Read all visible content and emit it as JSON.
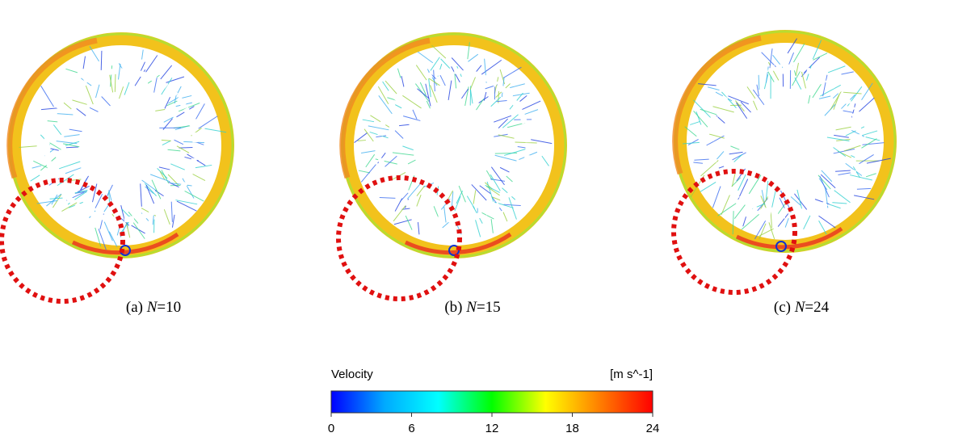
{
  "panels": [
    {
      "label": "(a)",
      "variable": "N",
      "eq": "=10"
    },
    {
      "label": "(b)",
      "variable": "N",
      "eq": "=15"
    },
    {
      "label": "(c)",
      "variable": "N",
      "eq": "=24"
    }
  ],
  "colorbar": {
    "title": "Velocity",
    "unit": "[m s^-1]",
    "lim": [
      0,
      24
    ],
    "ticks": [
      0,
      6,
      12,
      18,
      24
    ],
    "colors": [
      "#0000ff",
      "#00aaff",
      "#00ffff",
      "#00ff00",
      "#ffff00",
      "#ff8000",
      "#ff0000"
    ]
  }
}
